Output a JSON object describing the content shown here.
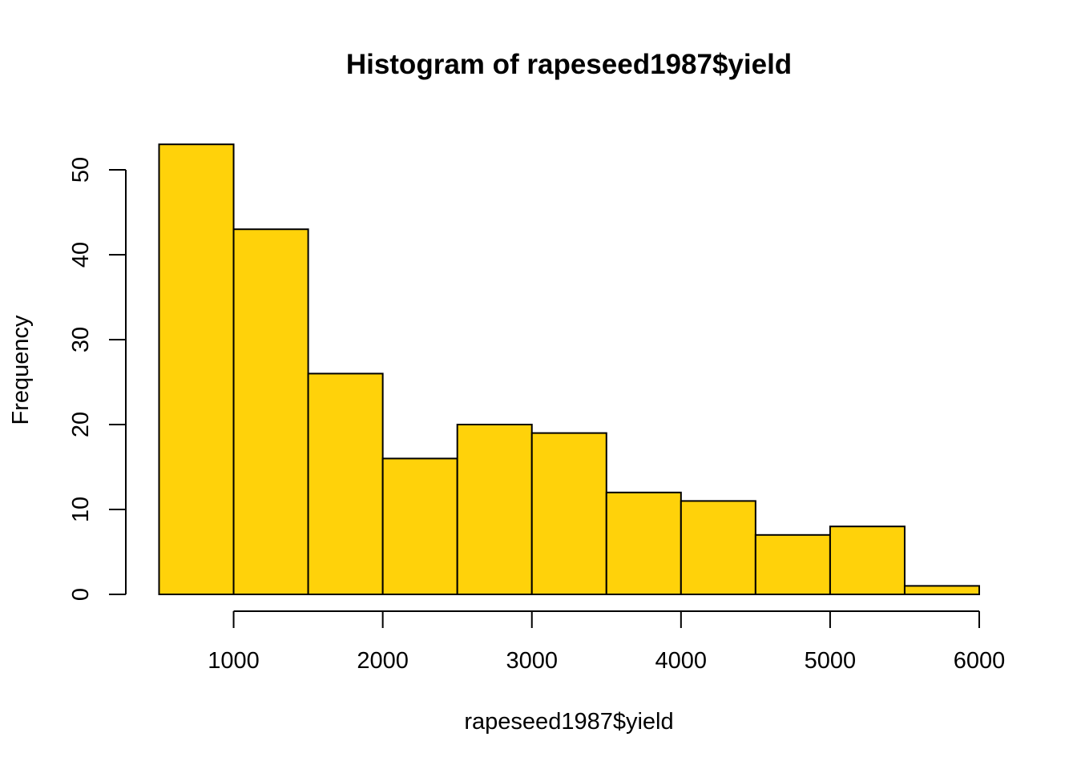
{
  "chart_data": {
    "type": "bar",
    "title": "Histogram of rapeseed1987$yield",
    "xlabel": "rapeseed1987$yield",
    "ylabel": "Frequency",
    "bins": [
      {
        "from": 500,
        "to": 1000,
        "count": 53
      },
      {
        "from": 1000,
        "to": 1500,
        "count": 43
      },
      {
        "from": 1500,
        "to": 2000,
        "count": 26
      },
      {
        "from": 2000,
        "to": 2500,
        "count": 16
      },
      {
        "from": 2500,
        "to": 3000,
        "count": 20
      },
      {
        "from": 3000,
        "to": 3500,
        "count": 19
      },
      {
        "from": 3500,
        "to": 4000,
        "count": 12
      },
      {
        "from": 4000,
        "to": 4500,
        "count": 11
      },
      {
        "from": 4500,
        "to": 5000,
        "count": 7
      },
      {
        "from": 5000,
        "to": 5500,
        "count": 8
      },
      {
        "from": 5500,
        "to": 6000,
        "count": 1
      }
    ],
    "xticks": [
      1000,
      2000,
      3000,
      4000,
      5000,
      6000
    ],
    "yticks": [
      0,
      10,
      20,
      30,
      40,
      50
    ],
    "xlim": [
      500,
      6000
    ],
    "ylim": [
      0,
      50
    ],
    "grid": false,
    "colors": {
      "bar_fill": "#FFD20A",
      "bar_stroke": "#000000"
    }
  }
}
